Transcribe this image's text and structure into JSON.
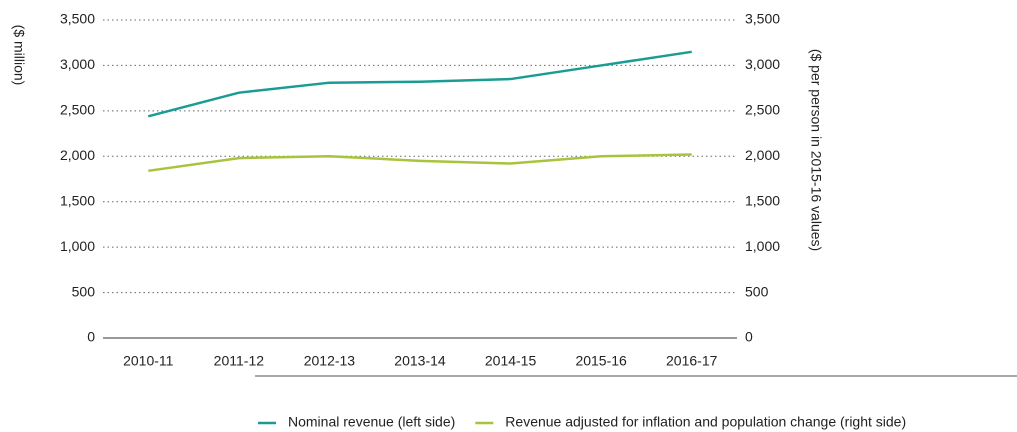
{
  "chart_data": {
    "type": "line",
    "ylabel": "($ million)",
    "y2label": "($ per person in 2015-16 values)",
    "categories": [
      "2010-11",
      "2011-12",
      "2012-13",
      "2013-14",
      "2014-15",
      "2015-16",
      "2016-17"
    ],
    "series": [
      {
        "name": "Nominal revenue (left side)",
        "color": "#1a9c95",
        "values": [
          2440,
          2700,
          2810,
          2820,
          2850,
          3000,
          3150
        ]
      },
      {
        "name": "Revenue adjusted for inflation and population change (right side)",
        "color": "#a8c43c",
        "axis": "y2",
        "values": [
          1840,
          1980,
          2000,
          1950,
          1920,
          2000,
          2020
        ]
      }
    ],
    "ylim": [
      0,
      3500
    ],
    "yticks": [
      0,
      500,
      {
        "value": 1000,
        "label": "1,000"
      },
      {
        "value": 1500,
        "label": "1,500"
      },
      {
        "value": 2000,
        "label": "2,000"
      },
      {
        "value": 2500,
        "label": "2,500"
      },
      {
        "value": 3000,
        "label": "3,000"
      },
      {
        "value": 3500,
        "label": "3,500"
      }
    ],
    "y2lim": [
      0,
      3500
    ],
    "y2ticks": [
      0,
      500,
      {
        "value": 1000,
        "label": "1,000"
      },
      {
        "value": 1500,
        "label": "1,500"
      },
      {
        "value": 2000,
        "label": "2,000"
      },
      {
        "value": 2500,
        "label": "2,500"
      },
      {
        "value": 3000,
        "label": "3,000"
      },
      {
        "value": 3500,
        "label": "3,500"
      }
    ],
    "grid": true,
    "legend": "bottom"
  }
}
